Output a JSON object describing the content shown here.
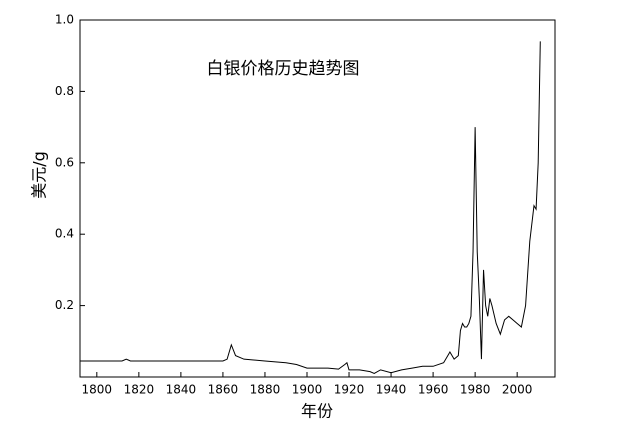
{
  "chart_data": {
    "type": "line",
    "title": "白银价格历史趋势图",
    "x_label": "年份",
    "y_label": "美元/g",
    "x": [
      1792,
      1812,
      1814,
      1816,
      1860,
      1862,
      1864,
      1866,
      1870,
      1880,
      1890,
      1895,
      1900,
      1910,
      1915,
      1918,
      1919,
      1920,
      1925,
      1930,
      1932,
      1935,
      1940,
      1945,
      1950,
      1955,
      1960,
      1965,
      1967,
      1968,
      1970,
      1972,
      1973,
      1974,
      1975,
      1976,
      1977,
      1978,
      1979,
      1980,
      1981,
      1982,
      1983,
      1984,
      1985,
      1986,
      1987,
      1988,
      1990,
      1992,
      1994,
      1996,
      1998,
      2000,
      2002,
      2004,
      2006,
      2008,
      2009,
      2010,
      2011
    ],
    "series": [
      {
        "color": "#000000",
        "values": [
          0.045,
          0.045,
          0.05,
          0.045,
          0.045,
          0.05,
          0.09,
          0.06,
          0.05,
          0.045,
          0.04,
          0.035,
          0.025,
          0.025,
          0.022,
          0.035,
          0.04,
          0.02,
          0.02,
          0.015,
          0.01,
          0.02,
          0.012,
          0.02,
          0.025,
          0.03,
          0.03,
          0.04,
          0.06,
          0.07,
          0.05,
          0.06,
          0.13,
          0.15,
          0.14,
          0.14,
          0.15,
          0.17,
          0.35,
          0.7,
          0.35,
          0.22,
          0.05,
          0.3,
          0.2,
          0.17,
          0.22,
          0.2,
          0.15,
          0.12,
          0.16,
          0.17,
          0.16,
          0.15,
          0.14,
          0.2,
          0.38,
          0.48,
          0.47,
          0.6,
          0.94
        ]
      }
    ],
    "xlim": [
      1792,
      2018
    ],
    "xticks": [
      1800,
      1820,
      1840,
      1860,
      1880,
      1900,
      1920,
      1940,
      1960,
      1980,
      2000
    ],
    "ylim": [
      0,
      1
    ],
    "yticks": [
      0.2,
      0.4,
      0.6,
      0.8,
      {
        "value": 1,
        "label": "1.0"
      }
    ],
    "grid": false
  }
}
